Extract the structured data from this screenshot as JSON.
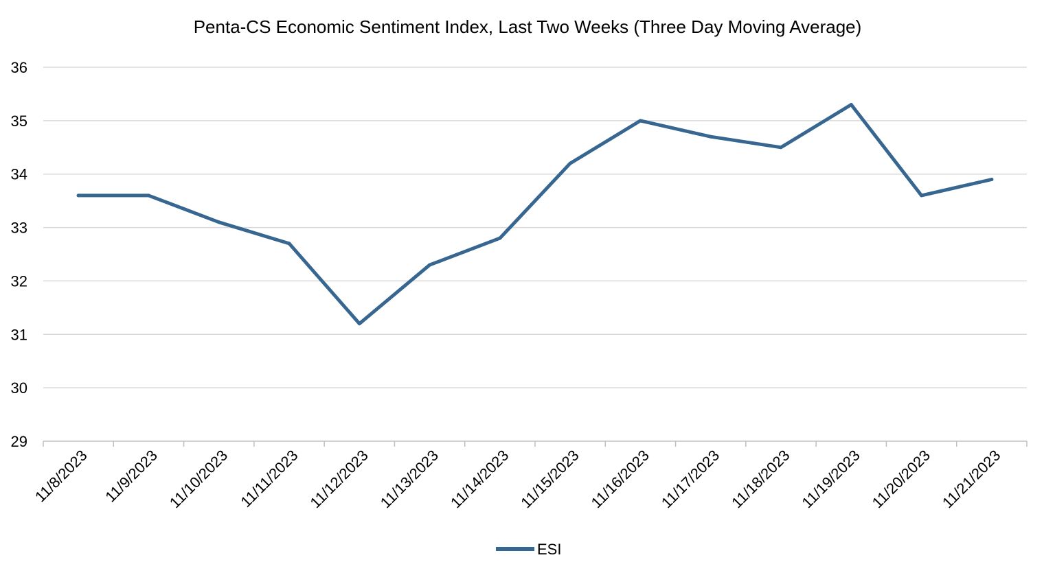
{
  "chart_data": {
    "type": "line",
    "title": "Penta-CS Economic Sentiment Index, Last Two Weeks (Three Day Moving Average)",
    "xlabel": "",
    "ylabel": "",
    "categories": [
      "11/8/2023",
      "11/9/2023",
      "11/10/2023",
      "11/11/2023",
      "11/12/2023",
      "11/13/2023",
      "11/14/2023",
      "11/15/2023",
      "11/16/2023",
      "11/17/2023",
      "11/18/2023",
      "11/19/2023",
      "11/20/2023",
      "11/21/2023"
    ],
    "series": [
      {
        "name": "ESI",
        "color": "#376791",
        "values": [
          33.6,
          33.6,
          33.1,
          32.7,
          31.2,
          32.3,
          32.8,
          34.2,
          35.0,
          34.7,
          34.5,
          35.3,
          33.6,
          33.9
        ]
      }
    ],
    "ylim": [
      29,
      36
    ],
    "yticks": [
      "29",
      "30",
      "31",
      "32",
      "33",
      "34",
      "35",
      "36"
    ],
    "grid": "horizontal",
    "legend": "bottom-center",
    "colors": {
      "gridline": "#d9d9d9",
      "axis": "#bfbfbf"
    }
  }
}
